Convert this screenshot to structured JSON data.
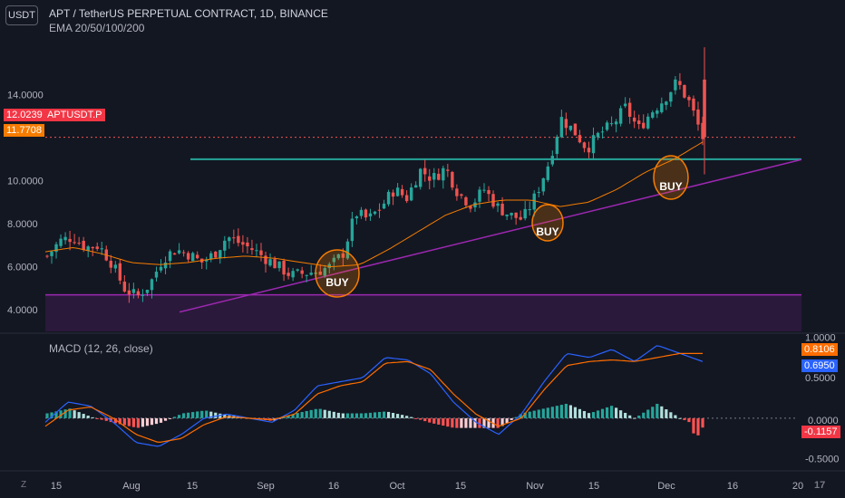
{
  "header": {
    "currency": "USDT",
    "title": "APT / TetherUS PERPETUAL CONTRACT, 1D, BINANCE",
    "indicator": "EMA 20/50/100/200",
    "macd": "MACD (12, 26, close)"
  },
  "price_tags": {
    "last": "12.0239",
    "symbol": "APTUSDT.P",
    "ema": "11.7708",
    "macd1": "0.8106",
    "macd2": "0.6950",
    "zero": "0.0000",
    "hist": "-0.1157"
  },
  "annotations": [
    "BUY",
    "BUY",
    "BUY"
  ],
  "icons": {
    "timezone": "Z",
    "logo": "tv-logo-icon"
  },
  "logo_text": "17",
  "colors": {
    "background": "#131722",
    "up": "#26a69a",
    "down": "#ef5350",
    "ema": "#f57c00",
    "support": "#9c27b0",
    "resistance": "#26a69a",
    "macd": "#2962ff",
    "signal": "#ff6d00"
  },
  "chart_data": [
    {
      "type": "candlestick",
      "title": "APT / TetherUS PERPETUAL CONTRACT, 1D, BINANCE",
      "x_ticks": [
        "15",
        "Aug",
        "15",
        "Sep",
        "16",
        "Oct",
        "15",
        "Nov",
        "15",
        "Dec",
        "16",
        "20"
      ],
      "y_ticks": [
        4.0,
        6.0,
        8.0,
        10.0,
        14.0
      ],
      "ylim": [
        3.0,
        16.8
      ],
      "close_path": [
        6.5,
        7.2,
        7.4,
        6.9,
        7.0,
        6.2,
        5.0,
        4.6,
        5.2,
        6.4,
        6.8,
        6.6,
        6.2,
        6.6,
        7.4,
        7.1,
        6.8,
        6.4,
        6.0,
        5.6,
        5.7,
        5.8,
        6.0,
        6.6,
        8.5,
        8.2,
        8.8,
        9.6,
        9.2,
        10.5,
        10.1,
        10.6,
        9.4,
        8.9,
        9.6,
        8.8,
        8.4,
        8.2,
        9.3,
        10.8,
        12.9,
        12.3,
        11.5,
        12.2,
        12.6,
        13.4,
        12.4,
        13.2,
        13.8,
        14.6,
        13.6,
        12.0
      ],
      "ema_path": [
        6.7,
        6.9,
        6.6,
        6.2,
        6.1,
        6.2,
        6.4,
        6.5,
        6.4,
        6.2,
        6.0,
        6.1,
        6.8,
        7.6,
        8.4,
        8.9,
        9.1,
        9.1,
        8.8,
        9.0,
        9.6,
        10.4,
        11.0,
        11.8
      ],
      "support_level": 4.7,
      "resistance_level": 11.0,
      "trendline": {
        "from": 3.9,
        "to": 10.9
      }
    },
    {
      "type": "macd",
      "title": "MACD (12, 26, close)",
      "y_ticks": [
        1.0,
        0.5,
        0.0,
        -0.5
      ],
      "ylim": [
        -0.65,
        1.05
      ],
      "macd_path": [
        -0.05,
        0.2,
        0.15,
        -0.05,
        -0.3,
        -0.35,
        -0.2,
        0.0,
        0.05,
        0.0,
        -0.05,
        0.1,
        0.4,
        0.45,
        0.5,
        0.75,
        0.72,
        0.55,
        0.2,
        -0.05,
        -0.2,
        0.05,
        0.45,
        0.8,
        0.75,
        0.85,
        0.7,
        0.9,
        0.8,
        0.7
      ],
      "signal_path": [
        -0.1,
        0.1,
        0.14,
        0.0,
        -0.2,
        -0.3,
        -0.25,
        -0.08,
        0.02,
        0.0,
        -0.02,
        0.05,
        0.3,
        0.4,
        0.45,
        0.68,
        0.7,
        0.6,
        0.3,
        0.05,
        -0.1,
        0.0,
        0.35,
        0.65,
        0.7,
        0.72,
        0.7,
        0.75,
        0.8,
        0.8
      ],
      "histogram_ends": -0.1157
    }
  ]
}
